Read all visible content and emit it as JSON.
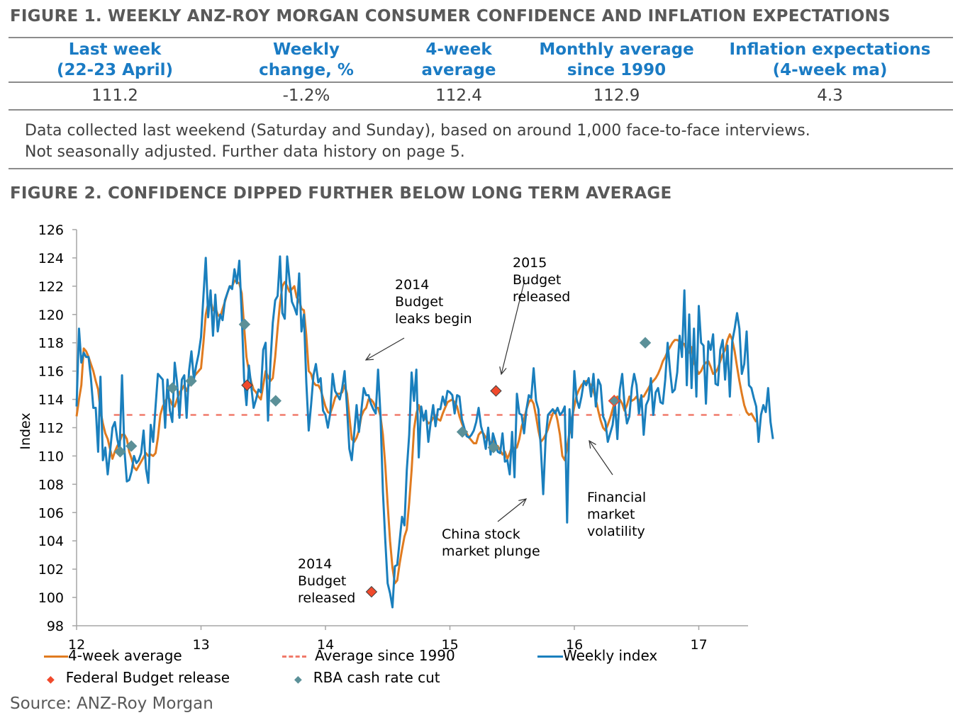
{
  "figure1": {
    "title": "FIGURE 1. WEEKLY ANZ-ROY MORGAN CONSUMER CONFIDENCE AND INFLATION EXPECTATIONS",
    "columns": [
      {
        "header_line1": "Last week",
        "header_line2": "(22-23 April)",
        "value": "111.2"
      },
      {
        "header_line1": "Weekly",
        "header_line2": "change, %",
        "value": "-1.2%"
      },
      {
        "header_line1": "4-week",
        "header_line2": "average",
        "value": "112.4"
      },
      {
        "header_line1": "Monthly average",
        "header_line2": "since 1990",
        "value": "112.9"
      },
      {
        "header_line1": "Inflation expectations",
        "header_line2": "(4-week ma)",
        "value": "4.3"
      }
    ],
    "note_line1": "Data collected last weekend (Saturday and Sunday), based on around 1,000 face-to-face interviews.",
    "note_line2": "Not seasonally adjusted. Further data history on page 5."
  },
  "figure2": {
    "title": "FIGURE 2. CONFIDENCE DIPPED FURTHER BELOW LONG TERM AVERAGE"
  },
  "colors": {
    "header_blue": "#1a7bc4",
    "weekly": "#1a7fbd",
    "avg4": "#e07b20",
    "avg1990": "#f07a6a",
    "budget": "#f04a2c",
    "rba": "#5b9098"
  },
  "source": "Source: ANZ-Roy Morgan",
  "chart_data": {
    "type": "line",
    "title": "FIGURE 2. CONFIDENCE DIPPED FURTHER BELOW LONG TERM AVERAGE",
    "xlabel": "",
    "ylabel": "Index",
    "ylim": [
      98,
      126
    ],
    "yticks": [
      98,
      100,
      102,
      104,
      106,
      108,
      110,
      112,
      114,
      116,
      118,
      120,
      122,
      124,
      126
    ],
    "xlim": [
      12,
      17.4
    ],
    "xticks": [
      12,
      13,
      14,
      15,
      16,
      17
    ],
    "xtick_labels": [
      "12",
      "13",
      "14",
      "15",
      "16",
      "17"
    ],
    "grid": false,
    "legend_position": "bottom",
    "legend": [
      "4-week average",
      "Average since 1990",
      "Weekly index",
      "Federal Budget release",
      "RBA cash rate cut"
    ],
    "reference_line": {
      "name": "Average since 1990",
      "value": 112.9
    },
    "series": [
      {
        "name": "Weekly index",
        "x_start": 12.0,
        "x_step": 0.01923,
        "values": [
          113.5,
          119.0,
          116.6,
          117.3,
          117.0,
          117.0,
          115.5,
          113.4,
          113.4,
          110.3,
          115.6,
          109.7,
          110.6,
          108.7,
          110.3,
          112.0,
          112.4,
          111.2,
          110.4,
          115.7,
          110.4,
          108.2,
          108.3,
          108.9,
          110.0,
          109.5,
          109.7,
          110.2,
          111.8,
          109.1,
          108.1,
          112.2,
          111.0,
          113.5,
          115.8,
          115.6,
          115.4,
          112.0,
          115.4,
          113.2,
          112.4,
          116.6,
          115.2,
          112.7,
          115.4,
          115.7,
          112.7,
          116.0,
          117.4,
          115.4,
          116.4,
          117.2,
          118.4,
          121.3,
          124.0,
          119.8,
          121.7,
          118.5,
          121.4,
          118.8,
          120.0,
          119.6,
          121.0,
          121.5,
          122.0,
          121.8,
          123.2,
          122.2,
          123.8,
          120.0,
          115.5,
          113.6,
          116.4,
          114.9,
          113.4,
          114.0,
          114.7,
          114.5,
          117.5,
          118.0,
          112.5,
          116.6,
          119.4,
          121.0,
          121.3,
          124.1,
          120.1,
          119.7,
          124.1,
          122.4,
          120.9,
          120.5,
          120.0,
          122.9,
          118.8,
          120.0,
          115.2,
          111.8,
          113.6,
          115.7,
          116.5,
          115.2,
          115.5,
          113.2,
          112.9,
          112.0,
          113.0,
          115.8,
          114.6,
          114.3,
          114.0,
          114.8,
          116.0,
          113.4,
          110.5,
          109.7,
          111.6,
          113.6,
          111.7,
          113.2,
          114.8,
          114.3,
          114.3,
          113.7,
          113.3,
          113.0,
          116.1,
          112.9,
          107.5,
          104.0,
          101.0,
          100.3,
          99.3,
          102.2,
          102.3,
          104.0,
          105.7,
          105.1,
          109.0,
          111.5,
          115.9,
          113.9,
          116.1,
          109.9,
          113.5,
          112.5,
          113.2,
          111.0,
          112.4,
          113.6,
          112.1,
          113.3,
          113.3,
          114.2,
          113.6,
          114.6,
          114.5,
          114.3,
          113.0,
          114.3,
          114.2,
          112.6,
          112.0,
          111.4,
          111.3,
          111.5,
          111.8,
          112.4,
          113.4,
          112.1,
          111.5,
          110.5,
          112.0,
          110.1,
          111.6,
          111.0,
          110.3,
          110.2,
          111.6,
          109.6,
          109.7,
          108.7,
          111.7,
          108.5,
          114.4,
          113.0,
          112.9,
          111.6,
          113.3,
          114.3,
          114.1,
          116.2,
          113.9,
          113.3,
          110.6,
          107.3,
          111.2,
          112.9,
          113.1,
          113.3,
          113.0,
          113.4,
          112.9,
          113.1,
          113.5,
          105.3,
          113.3,
          111.3,
          116.0,
          114.0,
          113.4,
          114.2,
          115.3,
          115.0,
          115.5,
          114.2,
          115.8,
          113.5,
          115.4,
          115.0,
          112.8,
          112.4,
          111.0,
          111.6,
          112.2,
          113.7,
          111.2,
          114.7,
          115.8,
          113.6,
          112.3,
          112.8,
          114.8,
          115.8,
          115.0,
          113.0,
          114.3,
          111.5,
          113.6,
          114.0,
          115.5,
          112.9,
          114.5,
          114.8,
          113.8,
          113.7,
          115.4,
          118.0,
          116.0,
          114.5,
          114.7,
          115.9,
          118.5,
          117.0,
          121.7,
          115.0,
          120.0,
          114.8,
          119.0,
          114.2,
          120.6,
          118.0,
          117.8,
          113.7,
          118.1,
          117.5,
          118.6,
          115.1,
          115.0,
          117.5,
          118.2,
          115.4,
          117.8,
          114.2,
          118.1,
          119.0,
          120.1,
          119.0,
          115.8,
          116.5,
          118.8,
          115.0,
          114.8,
          114.1,
          113.5,
          111.0,
          112.9,
          113.6,
          113.1,
          114.8,
          112.4,
          111.2
        ]
      },
      {
        "name": "4-week average",
        "x_start": 12.0,
        "x_step": 0.01923,
        "values": [
          112.8,
          114.0,
          115.0,
          117.6,
          117.4,
          117.0,
          116.5,
          116.0,
          115.3,
          114.7,
          113.2,
          112.3,
          111.6,
          111.2,
          110.5,
          109.8,
          110.3,
          110.7,
          111.0,
          111.5,
          111.5,
          111.2,
          110.3,
          109.8,
          109.2,
          109.0,
          109.3,
          109.6,
          109.9,
          110.2,
          110.0,
          110.1,
          110.0,
          110.2,
          111.3,
          112.9,
          113.5,
          113.8,
          114.2,
          114.0,
          113.6,
          113.5,
          114.0,
          114.5,
          114.7,
          115.0,
          114.6,
          115.0,
          115.5,
          115.6,
          115.8,
          116.0,
          116.2,
          118.0,
          120.0,
          120.8,
          121.0,
          120.3,
          120.5,
          120.0,
          119.8,
          120.4,
          120.9,
          121.5,
          122.0,
          122.0,
          122.4,
          122.3,
          122.2,
          121.5,
          119.2,
          117.0,
          116.0,
          115.2,
          114.7,
          114.5,
          114.2,
          114.0,
          115.0,
          116.0,
          115.6,
          115.3,
          115.5,
          117.0,
          119.0,
          120.8,
          122.0,
          122.3,
          122.0,
          121.6,
          121.8,
          122.0,
          121.2,
          121.0,
          120.4,
          120.3,
          118.5,
          116.0,
          115.8,
          115.2,
          115.0,
          115.0,
          114.7,
          114.1,
          113.5,
          113.1,
          113.0,
          113.5,
          114.1,
          114.4,
          114.4,
          114.5,
          115.0,
          114.4,
          112.8,
          111.2,
          111.0,
          111.3,
          111.8,
          112.8,
          113.2,
          113.4,
          114.0,
          114.0,
          113.8,
          113.4,
          113.4,
          112.8,
          111.5,
          109.3,
          106.6,
          104.0,
          102.1,
          101.0,
          101.2,
          102.4,
          103.4,
          104.3,
          104.8,
          106.7,
          109.0,
          111.9,
          113.0,
          113.6,
          112.8,
          112.8,
          112.6,
          112.3,
          112.4,
          112.7,
          112.8,
          112.6,
          112.5,
          113.0,
          113.4,
          113.8,
          113.9,
          114.0,
          113.8,
          113.5,
          112.8,
          112.3,
          111.9,
          111.6,
          111.3,
          111.1,
          110.9,
          110.9,
          111.5,
          111.7,
          111.6,
          111.3,
          111.2,
          110.9,
          111.1,
          110.8,
          110.7,
          110.4,
          110.1,
          110.3,
          109.8,
          110.2,
          110.7,
          110.5,
          110.6,
          111.2,
          112.1,
          112.6,
          113.3,
          113.8,
          114.0,
          113.7,
          112.8,
          111.8,
          111.0,
          111.2,
          111.5,
          111.9,
          112.5,
          113.0,
          113.2,
          112.5,
          111.5,
          110.0,
          109.7,
          110.6,
          111.7,
          112.6,
          113.5,
          114.3,
          114.7,
          115.0,
          115.2,
          115.3,
          115.2,
          115.0,
          114.6,
          114.0,
          113.2,
          112.5,
          112.0,
          111.8,
          112.2,
          112.7,
          113.3,
          113.9,
          114.2,
          114.0,
          113.7,
          113.2,
          113.6,
          114.2,
          113.9,
          114.0,
          114.2,
          113.8,
          114.2,
          114.2,
          114.5,
          114.8,
          115.1,
          115.3,
          115.5,
          115.8,
          116.2,
          116.7,
          117.0,
          117.4,
          117.7,
          118.0,
          118.2,
          118.2,
          118.1,
          118.0,
          117.9,
          117.4,
          117.3,
          117.7,
          116.6,
          116.2,
          115.8,
          116.0,
          116.4,
          116.6,
          116.7,
          116.3,
          115.8,
          115.9,
          116.2,
          116.7,
          117.2,
          117.5,
          118.2,
          118.6,
          118.2,
          117.4,
          116.3,
          115.3,
          114.4,
          113.6,
          113.1,
          112.9,
          113.0,
          112.7,
          112.4
        ]
      }
    ],
    "markers": {
      "Federal Budget release": [
        {
          "x": 13.37,
          "y": 115.0
        },
        {
          "x": 14.37,
          "y": 100.4
        },
        {
          "x": 15.37,
          "y": 114.6
        },
        {
          "x": 16.32,
          "y": 113.9
        }
      ],
      "RBA cash rate cut": [
        {
          "x": 12.35,
          "y": 110.3
        },
        {
          "x": 12.44,
          "y": 110.7
        },
        {
          "x": 12.77,
          "y": 114.8
        },
        {
          "x": 12.92,
          "y": 115.3
        },
        {
          "x": 13.35,
          "y": 119.3
        },
        {
          "x": 13.6,
          "y": 113.9
        },
        {
          "x": 15.1,
          "y": 111.7
        },
        {
          "x": 15.35,
          "y": 110.6
        },
        {
          "x": 16.32,
          "y": 113.9
        },
        {
          "x": 16.57,
          "y": 118.0
        }
      ]
    },
    "annotations": [
      {
        "id": "leaks",
        "lines": [
          "2014",
          "Budget",
          "leaks begin"
        ],
        "target": {
          "x": 14.33,
          "y": 116.2
        }
      },
      {
        "id": "b2015",
        "lines": [
          "2015",
          "Budget",
          "released"
        ],
        "target": {
          "x": 15.42,
          "y": 115.7
        }
      },
      {
        "id": "b2014",
        "lines": [
          "2014",
          "Budget",
          "released"
        ],
        "target": null
      },
      {
        "id": "china",
        "lines": [
          "China stock",
          "market plunge"
        ],
        "target": {
          "x": 15.64,
          "y": 107.0
        }
      },
      {
        "id": "fin",
        "lines": [
          "Financial",
          "market",
          "volatility"
        ],
        "target": {
          "x": 16.13,
          "y": 111.0
        }
      }
    ]
  }
}
